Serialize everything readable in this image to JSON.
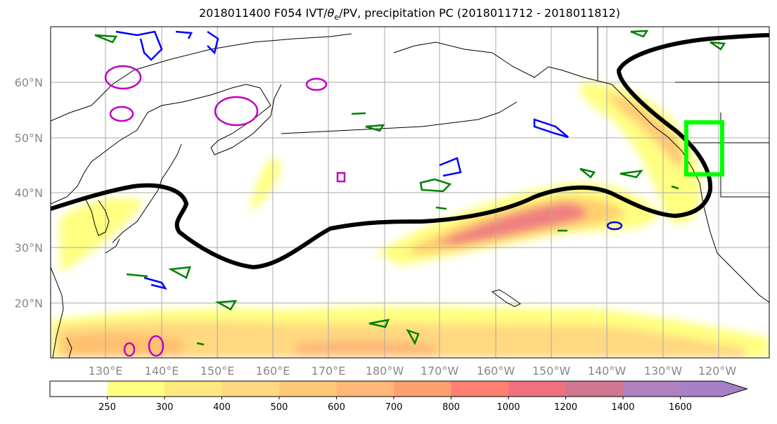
{
  "title": {
    "prefix": "2018011400 F054 IVT/",
    "theta_symbol": "θ",
    "theta_sub": "e",
    "suffix": "/PV, precipitation PC (2018011712 - 2018011812)"
  },
  "map": {
    "lat_labels": [
      "60°N",
      "50°N",
      "40°N",
      "30°N",
      "20°N"
    ],
    "lon_labels": [
      "130°E",
      "140°E",
      "150°E",
      "160°E",
      "170°E",
      "180°W",
      "170°W",
      "160°W",
      "150°W",
      "140°W",
      "130°W",
      "120°W"
    ],
    "colors": {
      "ivt_fill_low": "#ffff80",
      "ivt_fill_mid": "#ffc870",
      "ivt_fill_high": "#f08080",
      "pv_contour": "#000000",
      "theta_e_warm": "#c000c0",
      "theta_e_cold": "#0000ff",
      "precip_contour": "#008000",
      "target_box": "#00ff00",
      "gridline": "#aaaaaa",
      "coastline": "#000000"
    }
  },
  "colorbar": {
    "levels": [
      "250",
      "300",
      "400",
      "500",
      "600",
      "700",
      "800",
      "1000",
      "1200",
      "1400",
      "1600"
    ],
    "colors": [
      "#ffffff",
      "#ffff80",
      "#ffe880",
      "#ffd880",
      "#ffc878",
      "#ffb878",
      "#ffa070",
      "#ff8070",
      "#f07080",
      "#d07890",
      "#b080c0",
      "#a880c8"
    ]
  }
}
